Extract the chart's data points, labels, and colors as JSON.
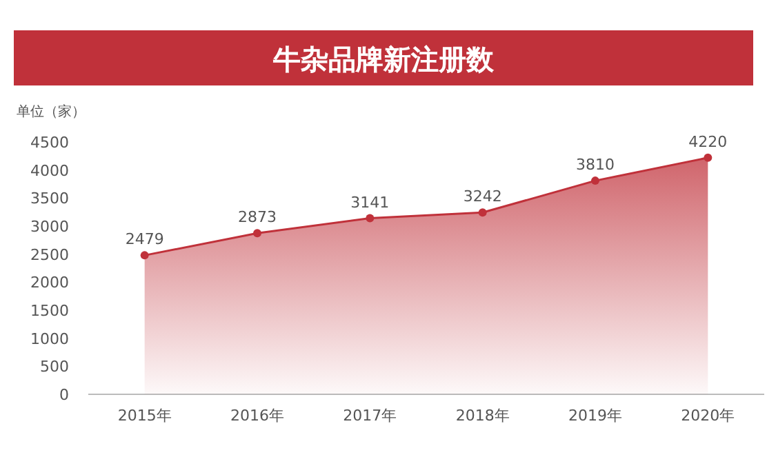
{
  "chart_data": {
    "type": "area",
    "title": "牛杂品牌新注册数",
    "ylabel": "单位（家）",
    "categories": [
      "2015年",
      "2016年",
      "2017年",
      "2018年",
      "2019年",
      "2020年"
    ],
    "values": [
      2479,
      2873,
      3141,
      3242,
      3810,
      4220
    ],
    "color": "#c0313a",
    "marker": "circle",
    "data_labels": true,
    "ylim": [
      0,
      4500
    ],
    "yticks": [
      0,
      500,
      1000,
      1500,
      2000,
      2500,
      3000,
      3500,
      4000,
      4500
    ]
  }
}
